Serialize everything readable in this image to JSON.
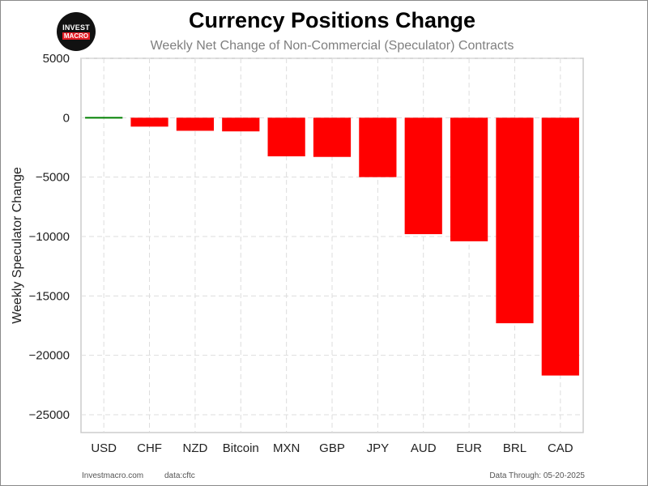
{
  "logo": {
    "line1": "INVEST",
    "line2": "MACRO"
  },
  "footer": {
    "site": "Investmacro.com",
    "source": "data:cftc",
    "through": "Data Through: 05-20-2025"
  },
  "colors": {
    "positive": "#008000",
    "negative": "#ff0000",
    "grid": "#dddddd",
    "axes_frame": "#cccccc"
  },
  "chart_data": {
    "type": "bar",
    "title": "Currency Positions Change",
    "subtitle": "Weekly Net Change of Non-Commercial (Speculator) Contracts",
    "xlabel": "",
    "ylabel": "Weekly Speculator Change",
    "categories": [
      "USD",
      "CHF",
      "NZD",
      "Bitcoin",
      "MXN",
      "GBP",
      "JPY",
      "AUD",
      "EUR",
      "BRL",
      "CAD"
    ],
    "values": [
      -50,
      -750,
      -1100,
      -1150,
      -3250,
      -3300,
      -5000,
      -9800,
      -10400,
      -17300,
      -21700
    ],
    "ylim": [
      -26500,
      5000
    ],
    "yticks": [
      5000,
      0,
      -5000,
      -10000,
      -15000,
      -20000,
      -25000
    ],
    "ytick_labels": [
      "5000",
      "0",
      "−5000",
      "−10000",
      "−15000",
      "−20000",
      "−25000"
    ],
    "grid": true,
    "legend": "none"
  }
}
